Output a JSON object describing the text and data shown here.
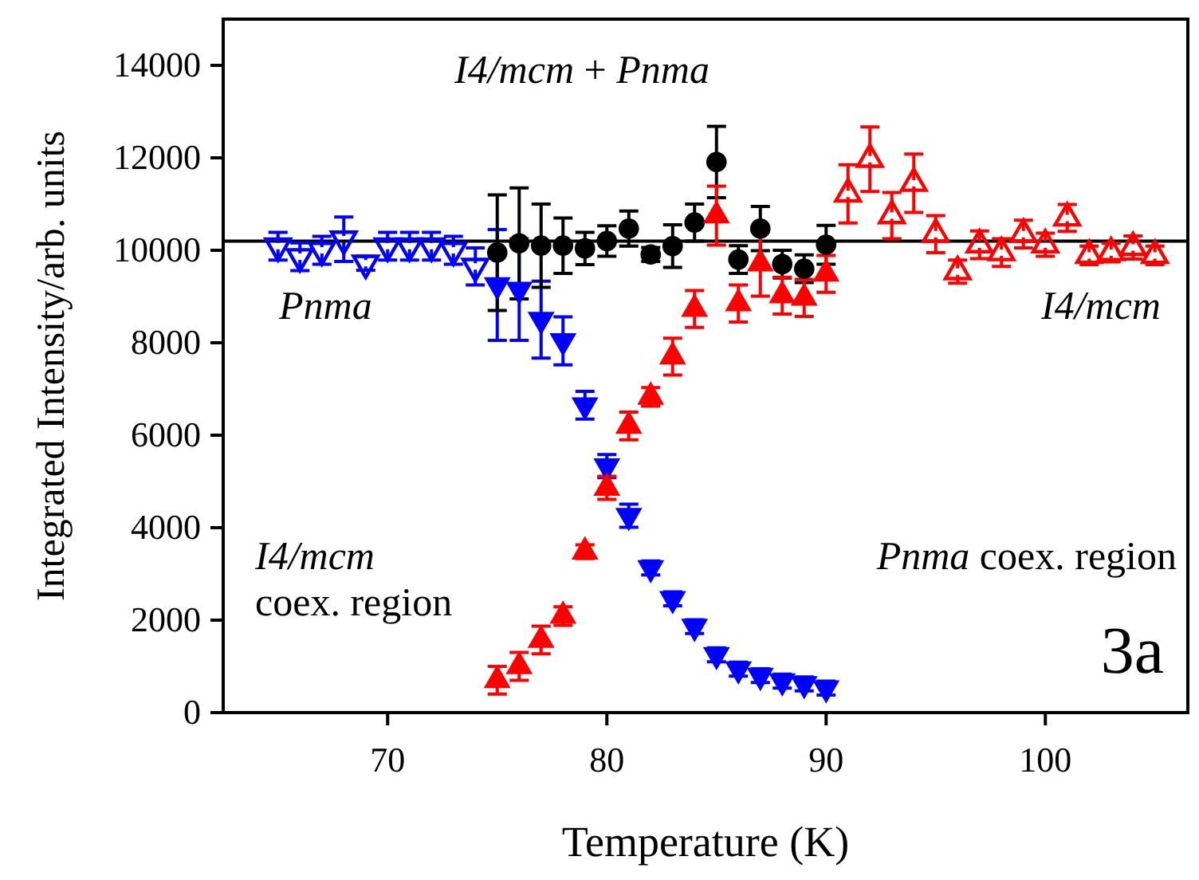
{
  "chart_data": {
    "type": "scatter",
    "xlabel": "Temperature (K)",
    "ylabel": "Integrated Intensity/arb. units",
    "xlim": [
      62.5,
      106.5
    ],
    "xticks": [
      70,
      80,
      90,
      100
    ],
    "ylim": [
      0,
      15000
    ],
    "yticks": [
      0,
      2000,
      4000,
      6000,
      8000,
      10000,
      12000,
      14000
    ],
    "grid": false,
    "series": [
      {
        "color": "#0000ff",
        "marker": "triangle",
        "x": [
          65,
          66,
          67,
          68,
          69,
          70,
          71,
          72,
          73,
          74
        ],
        "values": [
          10090,
          9860,
          10000,
          10240,
          9720,
          10090,
          10090,
          10090,
          10000,
          9650
        ],
        "errors": [
          300,
          300,
          300,
          480,
          150,
          300,
          300,
          300,
          300,
          400
        ]
      },
      {
        "color": "#0000ff",
        "marker": "triangle",
        "x": [
          75,
          76,
          77,
          78,
          79,
          80,
          81,
          82,
          83,
          84,
          85,
          86,
          87,
          88,
          89,
          90
        ],
        "values": [
          9250,
          9150,
          8500,
          8040,
          6650,
          5330,
          4260,
          3130,
          2460,
          1860,
          1250,
          940,
          800,
          680,
          620,
          530
        ],
        "errors": [
          1200,
          1100,
          830,
          520,
          300,
          250,
          250,
          150,
          150,
          150,
          150,
          150,
          150,
          150,
          150,
          150
        ]
      },
      {
        "color": "#000000",
        "marker": "circle",
        "x": [
          75,
          76,
          77,
          78,
          79,
          80,
          81,
          82,
          83,
          84,
          85,
          86,
          87,
          88,
          89,
          90
        ],
        "values": [
          9950,
          10150,
          10100,
          10100,
          10040,
          10200,
          10470,
          9910,
          10090,
          10600,
          11910,
          9800,
          10470,
          9700,
          9600,
          10120
        ],
        "errors": [
          1250,
          1200,
          900,
          600,
          350,
          330,
          380,
          150,
          460,
          400,
          770,
          300,
          480,
          300,
          300,
          420
        ]
      },
      {
        "color": "#ff0000",
        "marker": "triangle",
        "x": [
          75,
          76,
          77,
          78,
          79,
          80,
          81,
          82,
          83,
          84,
          85,
          86,
          87,
          88,
          89,
          90
        ],
        "values": [
          700,
          1000,
          1570,
          2090,
          3480,
          4860,
          6200,
          6830,
          7700,
          8730,
          10750,
          8850,
          9710,
          9020,
          8970,
          9490
        ],
        "errors": [
          300,
          300,
          300,
          200,
          150,
          250,
          300,
          200,
          400,
          400,
          640,
          400,
          700,
          400,
          400,
          400
        ]
      },
      {
        "color": "#ff0000",
        "marker": "triangle",
        "x": [
          91,
          92,
          93,
          94,
          95,
          96,
          97,
          98,
          99,
          100,
          101,
          102,
          103,
          104,
          105
        ],
        "values": [
          11220,
          11970,
          10750,
          11450,
          10350,
          9540,
          10120,
          9950,
          10350,
          10120,
          10700,
          9890,
          9950,
          10060,
          9890
        ],
        "errors": [
          630,
          700,
          500,
          630,
          400,
          250,
          300,
          300,
          300,
          250,
          290,
          200,
          200,
          250,
          200
        ]
      }
    ],
    "ref_lines": [
      {
        "axis": "y",
        "value": 10200,
        "color": "#000000"
      }
    ],
    "annotations": [
      "I4/mcm + Pnma",
      "Pnma",
      "I4/mcm",
      "I4/mcm\ncoex. region",
      "Pnma coex. region",
      "3a"
    ]
  }
}
